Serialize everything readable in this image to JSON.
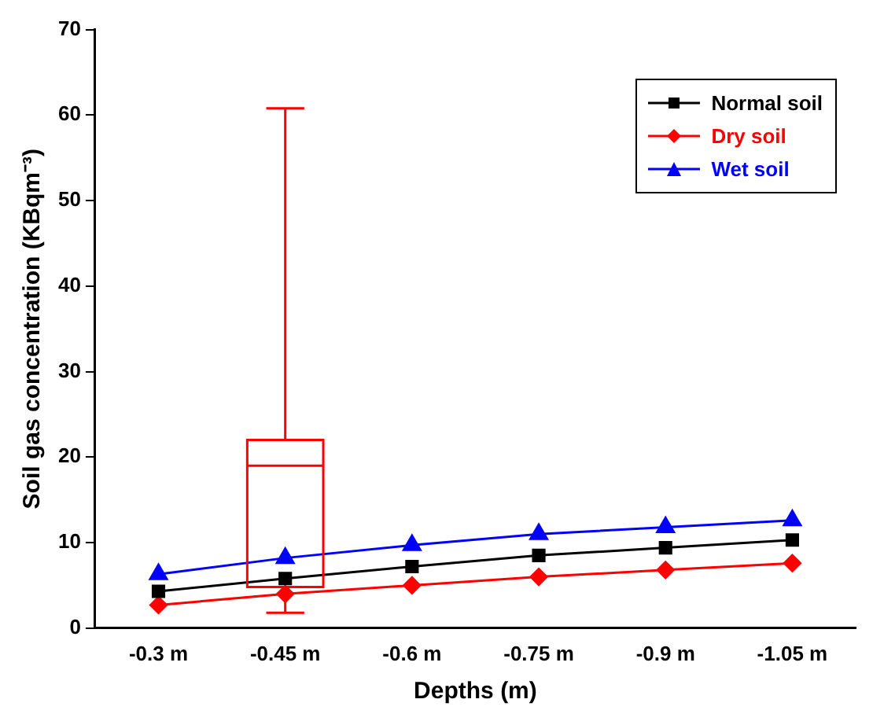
{
  "chart_data": {
    "type": "line",
    "xlabel": "Depths (m)",
    "ylabel": "Soil gas concentration (KBqm⁻³)",
    "categories": [
      "-0.3 m",
      "-0.45 m",
      "-0.6 m",
      "-0.75 m",
      "-0.9 m",
      "-1.05 m"
    ],
    "ylim": [
      0,
      70
    ],
    "yticks": [
      0,
      10,
      20,
      30,
      40,
      50,
      60,
      70
    ],
    "grid": false,
    "legend": "top right",
    "line_style": "solid",
    "series": [
      {
        "name": "Normal soil",
        "color": "#000000",
        "marker": "square",
        "values": [
          4.3,
          5.8,
          7.2,
          8.5,
          9.4,
          10.3
        ]
      },
      {
        "name": "Dry soil",
        "color": "#ff0000",
        "marker": "diamond",
        "values": [
          2.7,
          4.0,
          5.0,
          6.0,
          6.8,
          7.6
        ]
      },
      {
        "name": "Wet soil",
        "color": "#0000ff",
        "marker": "triangle",
        "values": [
          6.3,
          8.2,
          9.7,
          11.0,
          11.8,
          12.6
        ]
      },
      {
        "type": "box",
        "color": "#ff0000",
        "boxes": [
          null,
          {
            "low": 1.8,
            "q1": 4.8,
            "median": 19.0,
            "q3": 22.0,
            "high": 60.8
          },
          null,
          null,
          null,
          null
        ]
      }
    ]
  }
}
